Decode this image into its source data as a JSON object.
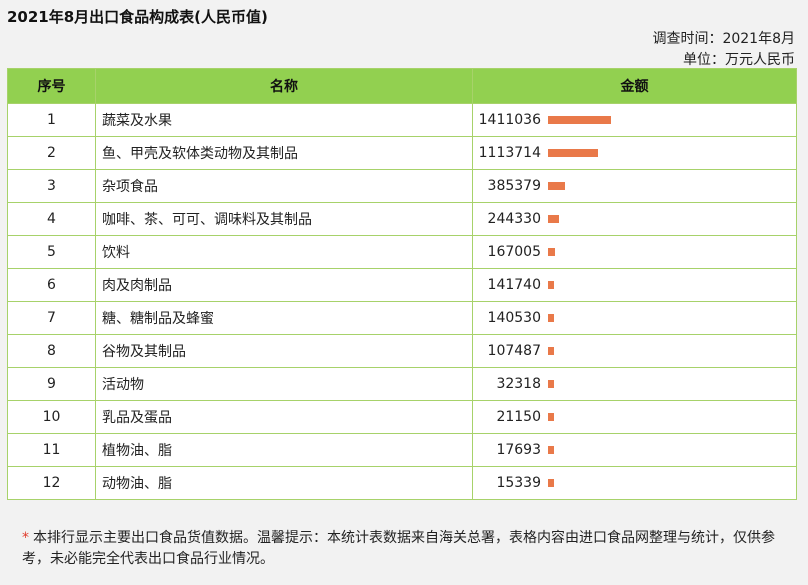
{
  "header": {
    "title": "2021年8月出口食品构成表(人民币值)",
    "survey_time": "调查时间：2021年8月",
    "unit": "单位：万元人民币"
  },
  "table": {
    "columns": [
      "序号",
      "名称",
      "金额"
    ],
    "rows": [
      {
        "idx": "1",
        "name": "蔬菜及水果",
        "amount": 1411036
      },
      {
        "idx": "2",
        "name": "鱼、甲壳及软体类动物及其制品",
        "amount": 1113714
      },
      {
        "idx": "3",
        "name": "杂项食品",
        "amount": 385379
      },
      {
        "idx": "4",
        "name": "咖啡、茶、可可、调味料及其制品",
        "amount": 244330
      },
      {
        "idx": "5",
        "name": "饮料",
        "amount": 167005
      },
      {
        "idx": "6",
        "name": "肉及肉制品",
        "amount": 141740
      },
      {
        "idx": "7",
        "name": "糖、糖制品及蜂蜜",
        "amount": 140530
      },
      {
        "idx": "8",
        "name": "谷物及其制品",
        "amount": 107487
      },
      {
        "idx": "9",
        "name": "活动物",
        "amount": 32318
      },
      {
        "idx": "10",
        "name": "乳品及蛋品",
        "amount": 21150
      },
      {
        "idx": "11",
        "name": "植物油、脂",
        "amount": 17693
      },
      {
        "idx": "12",
        "name": "动物油、脂",
        "amount": 15339
      }
    ]
  },
  "footnote": {
    "marker": "*",
    "text": "本排行显示主要出口食品货值数据。温馨提示：本统计表数据来自海关总署，表格内容由进口食品网整理与统计，仅供参考，未必能完全代表出口食品行业情况。"
  },
  "colors": {
    "header_green": "#92d050",
    "border_green": "#a7d26a",
    "bar_orange": "#e97949",
    "footnote_star": "#e03b2b"
  }
}
